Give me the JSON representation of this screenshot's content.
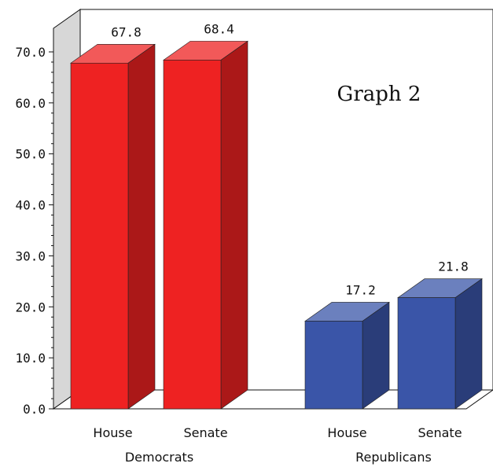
{
  "chart_data": {
    "type": "bar",
    "title": "Graph 2",
    "ylim": [
      0,
      70
    ],
    "yticks": [
      "0.0",
      "10.0",
      "20.0",
      "30.0",
      "40.0",
      "50.0",
      "60.0",
      "70.0"
    ],
    "groups": [
      {
        "label": "Democrats",
        "color": "#ee2222",
        "bars": [
          {
            "category": "House",
            "value": 67.8,
            "label": "67.8"
          },
          {
            "category": "Senate",
            "value": 68.4,
            "label": "68.4"
          }
        ]
      },
      {
        "label": "Republicans",
        "color": "#3a55a8",
        "bars": [
          {
            "category": "House",
            "value": 17.2,
            "label": "17.2"
          },
          {
            "category": "Senate",
            "value": 21.8,
            "label": "21.8"
          }
        ]
      }
    ],
    "grid": false,
    "legend": "none"
  }
}
